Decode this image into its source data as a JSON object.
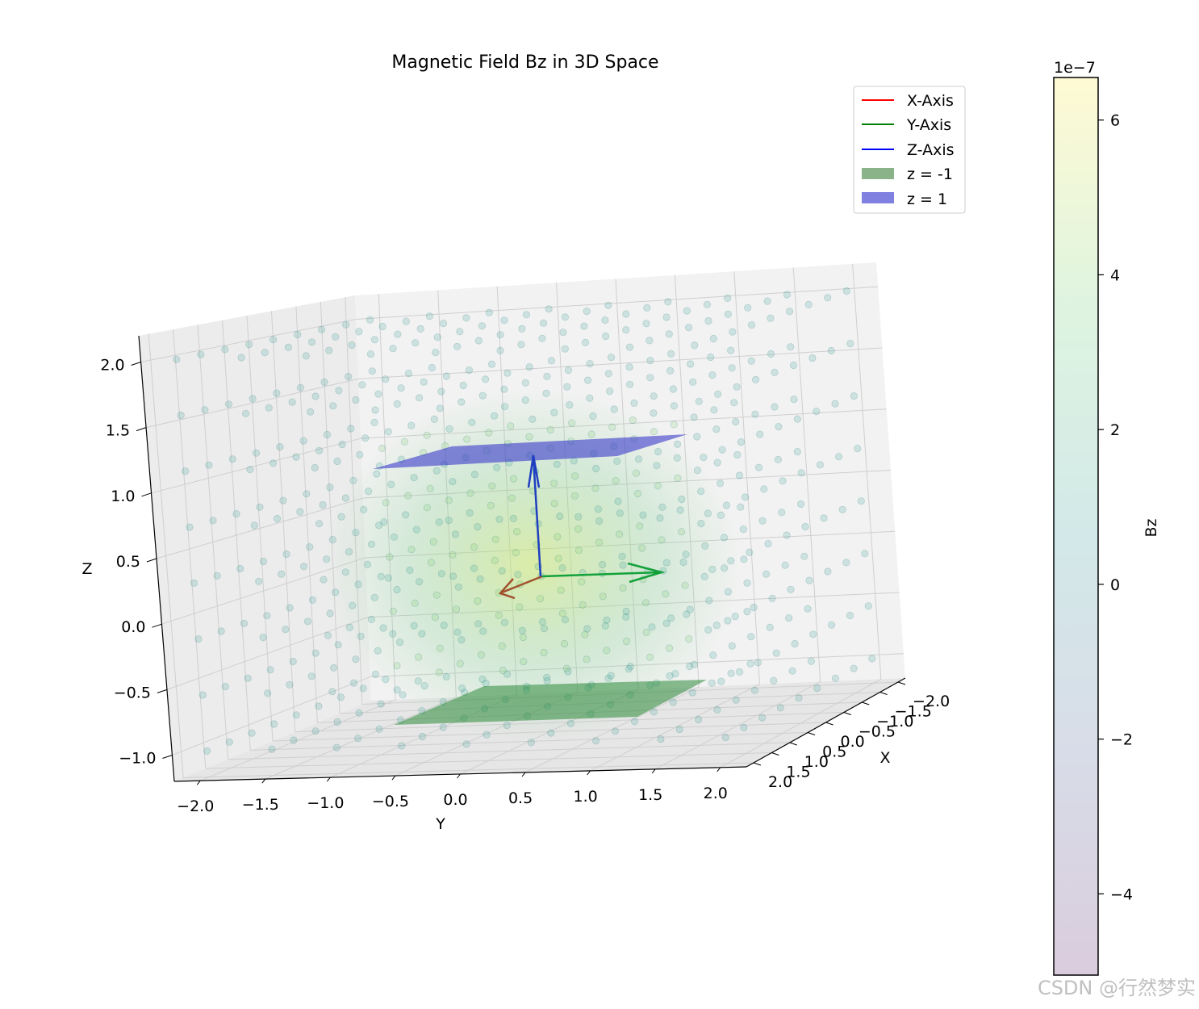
{
  "chart_data": {
    "type": "scatter",
    "projection": "3d",
    "title": "Magnetic Field Bz in 3D Space",
    "xlabel": "X",
    "ylabel": "Y",
    "zlabel": "Z",
    "xlim": [
      -2.2,
      2.2
    ],
    "ylim": [
      -2.2,
      2.2
    ],
    "zlim": [
      -1.2,
      2.2
    ],
    "x_ticks": [
      "−2.0",
      "−1.5",
      "−1.0",
      "−0.5",
      "0.0",
      "0.5",
      "1.0",
      "1.5",
      "2.0"
    ],
    "y_ticks": [
      "−2.0",
      "−1.5",
      "−1.0",
      "−0.5",
      "0.0",
      "0.5",
      "1.0",
      "1.5",
      "2.0"
    ],
    "z_ticks": [
      "−1.0",
      "−0.5",
      "0.0",
      "0.5",
      "1.0",
      "1.5",
      "2.0"
    ],
    "grid": true,
    "points": {
      "x_range": [
        -2,
        2
      ],
      "y_range": [
        -2,
        2
      ],
      "z_range": [
        -1,
        2
      ],
      "colormap": "viridis",
      "alpha": 0.2
    },
    "planes": [
      {
        "name": "z = -1",
        "z": -1,
        "color": "#2e8b3a"
      },
      {
        "name": "z = 1",
        "z": 1,
        "color": "#3333cc"
      }
    ],
    "arrows": [
      {
        "axis": "X",
        "color": "#d62728"
      },
      {
        "axis": "Y",
        "color": "#00a000"
      },
      {
        "axis": "Z",
        "color": "#0000ff"
      }
    ],
    "legend": {
      "position": "top-right",
      "entries": [
        {
          "label": "X-Axis",
          "kind": "line",
          "color": "#ff0000"
        },
        {
          "label": "Y-Axis",
          "kind": "line",
          "color": "#008000"
        },
        {
          "label": "Z-Axis",
          "kind": "line",
          "color": "#0000ff"
        },
        {
          "label": "z = -1",
          "kind": "patch",
          "color": "#8ab38a"
        },
        {
          "label": "z = 1",
          "kind": "patch",
          "color": "#8080e0"
        }
      ]
    },
    "colorbar": {
      "label": "Bz",
      "offset_text": "1e−7",
      "range": [
        -5.05,
        6.55
      ],
      "ticks": [
        -4,
        -2,
        0,
        2,
        4,
        6
      ],
      "tick_labels": [
        "−4",
        "−2",
        "0",
        "2",
        "4",
        "6"
      ],
      "colors": [
        "#440154",
        "#3b528b",
        "#21918c",
        "#5ec962",
        "#fde725"
      ],
      "alpha": 0.2
    }
  },
  "watermark": "CSDN @行然梦实"
}
